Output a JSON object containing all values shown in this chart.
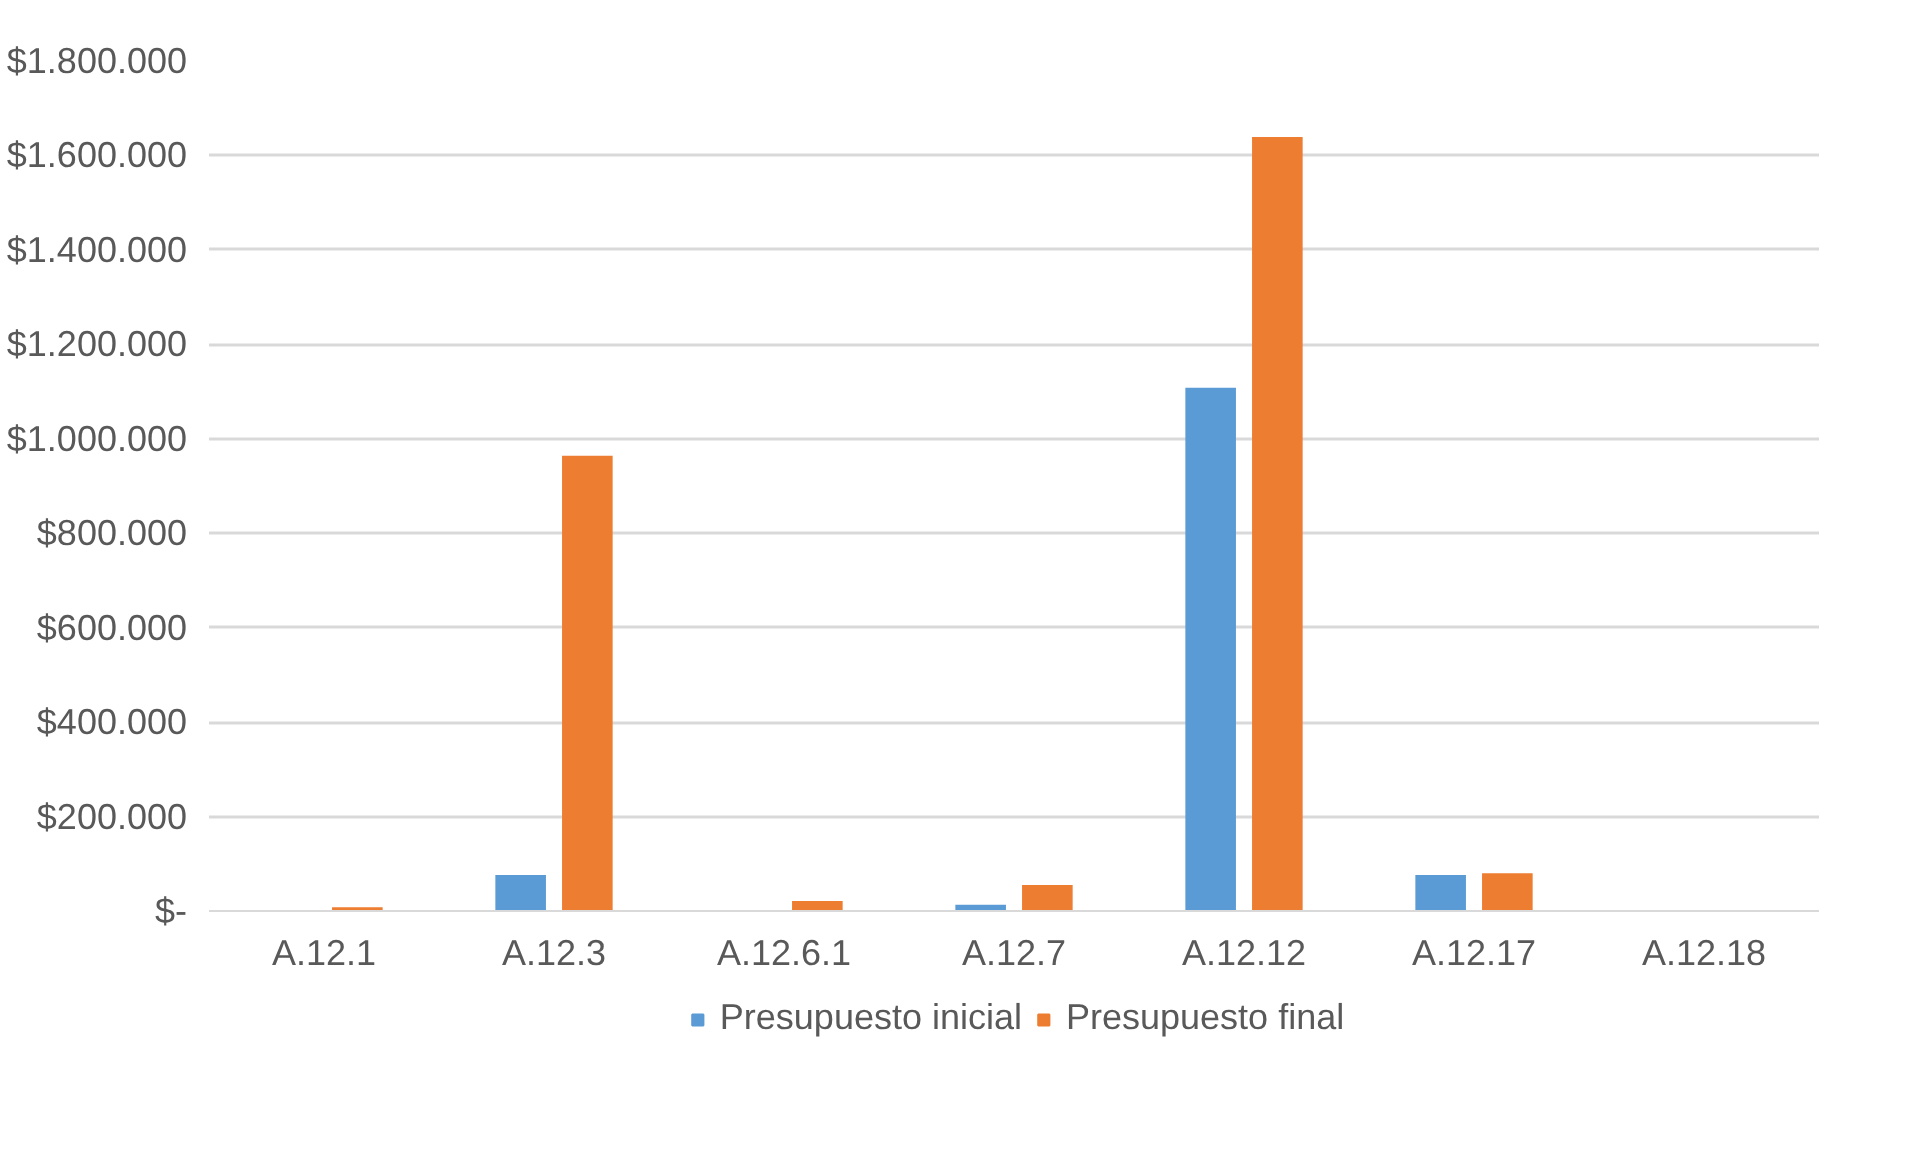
{
  "chart_data": {
    "type": "bar",
    "categories": [
      "A.12.1",
      "A.12.3",
      "A.12.6.1",
      "A.12.7",
      "A.12.12",
      "A.12.17",
      "A.12.18"
    ],
    "series": [
      {
        "name": "Presupuesto inicial",
        "color": "#5b9bd5",
        "values": [
          0,
          76000,
          0,
          13000,
          1108000,
          76000,
          null
        ]
      },
      {
        "name": "Presupuesto final",
        "color": "#ed7d31",
        "values": [
          8000,
          964000,
          21000,
          55000,
          1639000,
          80000,
          null
        ]
      }
    ],
    "ylim": [
      0,
      1800000
    ],
    "yticks": [
      {
        "value": 0,
        "label": "$-"
      },
      {
        "value": 200000,
        "label": "$200.000"
      },
      {
        "value": 400000,
        "label": "$400.000"
      },
      {
        "value": 600000,
        "label": "$600.000"
      },
      {
        "value": 800000,
        "label": "$800.000"
      },
      {
        "value": 1000000,
        "label": "$1.000.000"
      },
      {
        "value": 1200000,
        "label": "$1.200.000"
      },
      {
        "value": 1400000,
        "label": "$1.400.000"
      },
      {
        "value": 1600000,
        "label": "$1.600.000"
      },
      {
        "value": 1800000,
        "label": "$1.800.000"
      }
    ],
    "grid": "y",
    "legend": "bottom"
  }
}
